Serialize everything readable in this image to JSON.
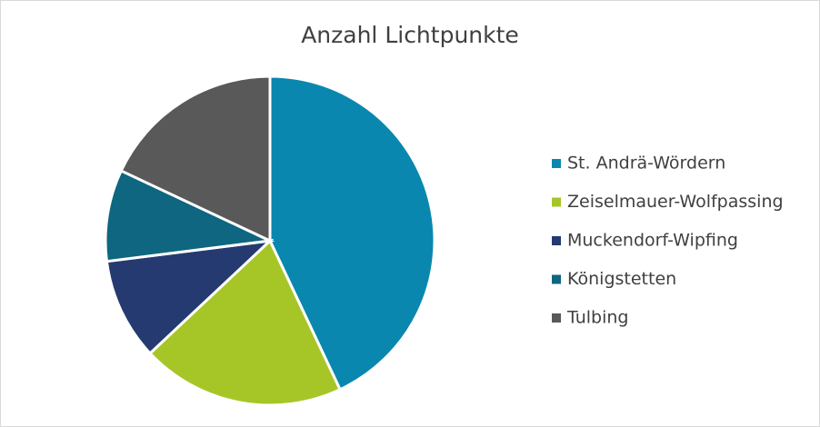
{
  "chart_data": {
    "type": "pie",
    "title": "Anzahl Lichtpunkte",
    "categories": [
      "St. Andrä-Wördern",
      "Zeiselmauer-Wolfpassing",
      "Muckendorf-Wipfing",
      "Königstetten",
      "Tulbing"
    ],
    "values": [
      43,
      20,
      10,
      9,
      18
    ],
    "colors": [
      "#0a87ae",
      "#a6c627",
      "#243a70",
      "#0e6680",
      "#595959"
    ],
    "legend": "right"
  }
}
